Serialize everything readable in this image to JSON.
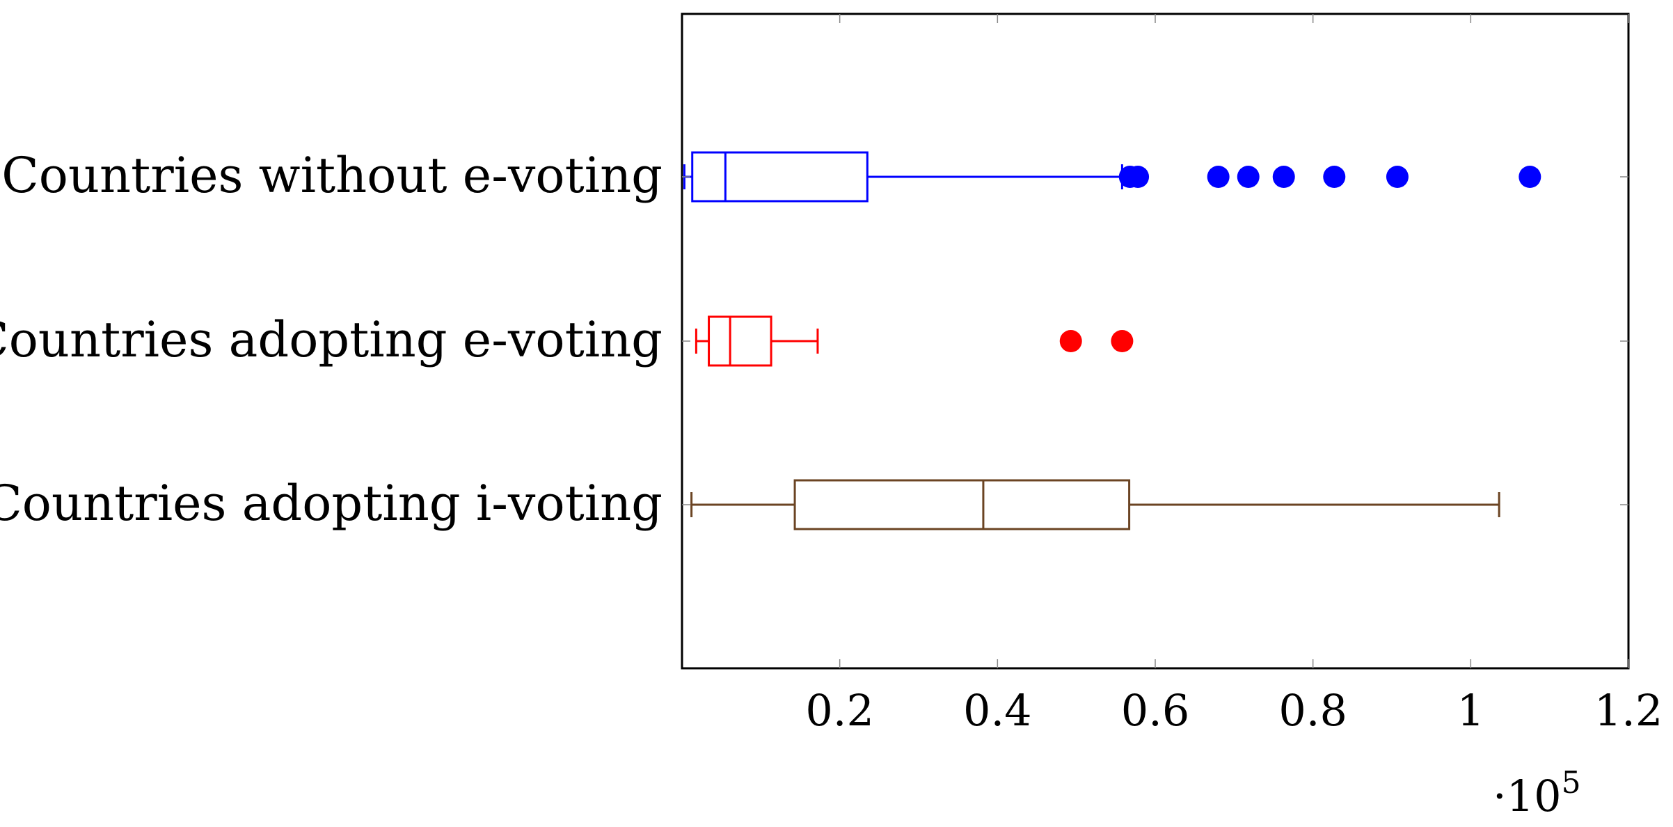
{
  "chart_data": {
    "type": "boxplot",
    "orientation": "horizontal",
    "x_multiplier_label": "·10",
    "x_multiplier_exponent": "5",
    "xlim": [
      0,
      1.2
    ],
    "x_ticks": [
      {
        "value": 0.2,
        "label": "0.2"
      },
      {
        "value": 0.4,
        "label": "0.4"
      },
      {
        "value": 0.6,
        "label": "0.6"
      },
      {
        "value": 0.8,
        "label": "0.8"
      },
      {
        "value": 1.0,
        "label": "1"
      },
      {
        "value": 1.2,
        "label": "1.2"
      }
    ],
    "grid": false,
    "legend": "none",
    "series": [
      {
        "label": "Countries without e-voting",
        "color": "#0000ff",
        "whisker_low": 0.003,
        "q1": 0.013,
        "median": 0.055,
        "q3": 0.235,
        "whisker_high": 0.558,
        "outliers": [
          0.568,
          0.578,
          0.68,
          0.718,
          0.763,
          0.827,
          0.907,
          1.075
        ]
      },
      {
        "label": "Countries adopting e-voting",
        "color": "#ff0000",
        "whisker_low": 0.018,
        "q1": 0.034,
        "median": 0.061,
        "q3": 0.113,
        "whisker_high": 0.172,
        "outliers": [
          0.493,
          0.558
        ]
      },
      {
        "label": "Countries adopting i-voting",
        "color": "#6b4423",
        "whisker_low": 0.012,
        "q1": 0.143,
        "median": 0.382,
        "q3": 0.567,
        "whisker_high": 1.036,
        "outliers": []
      }
    ]
  }
}
